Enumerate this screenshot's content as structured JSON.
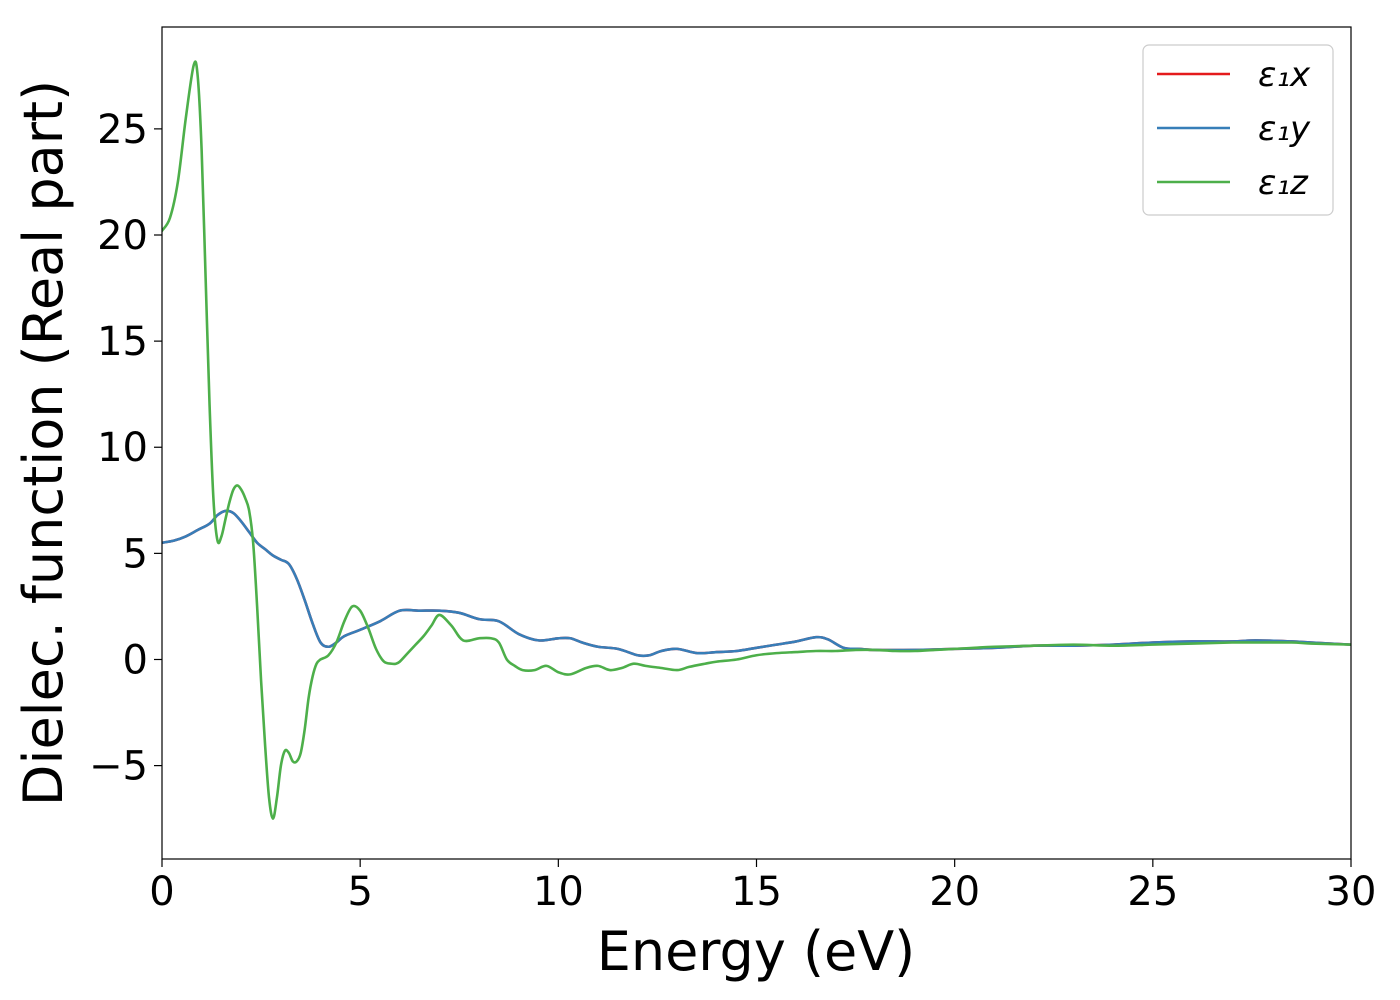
{
  "chart_data": {
    "type": "line",
    "title": "",
    "xlabel": "Energy (eV)",
    "ylabel": "Dielec. function (Real part)",
    "xlim": [
      0,
      30
    ],
    "ylim": [
      -9.4,
      29.8
    ],
    "xticks": [
      0,
      5,
      10,
      15,
      20,
      25,
      30
    ],
    "yticks": [
      -5,
      0,
      5,
      10,
      15,
      20,
      25
    ],
    "ytick_labels": [
      "−5",
      "0",
      "5",
      "10",
      "15",
      "20",
      "25"
    ],
    "grid": false,
    "legend_position": "top-right",
    "series": [
      {
        "name": "ε₁x",
        "color": "#e41a1c",
        "x": [
          0,
          0.3,
          0.6,
          0.9,
          1.2,
          1.4,
          1.6,
          1.8,
          2.0,
          2.2,
          2.4,
          2.6,
          2.8,
          3.0,
          3.2,
          3.4,
          3.6,
          3.8,
          4.0,
          4.2,
          4.4,
          4.6,
          5.0,
          5.5,
          6.0,
          6.5,
          7.0,
          7.5,
          8.0,
          8.5,
          9.0,
          9.5,
          10.0,
          10.3,
          10.6,
          11.0,
          11.5,
          12.0,
          12.3,
          12.6,
          13.0,
          13.5,
          14.0,
          14.5,
          15.0,
          15.5,
          16.0,
          16.5,
          16.8,
          17.2,
          17.6,
          18.0,
          19.0,
          20.0,
          21.0,
          22.0,
          23.0,
          24.0,
          25.0,
          26.0,
          27.0,
          27.6,
          28.5,
          29.0,
          30.0
        ],
        "y": [
          5.5,
          5.6,
          5.8,
          6.1,
          6.4,
          6.8,
          7.0,
          6.9,
          6.5,
          6.0,
          5.5,
          5.2,
          4.9,
          4.7,
          4.5,
          3.8,
          2.8,
          1.7,
          0.8,
          0.6,
          0.8,
          1.1,
          1.4,
          1.8,
          2.3,
          2.3,
          2.3,
          2.2,
          1.9,
          1.8,
          1.2,
          0.9,
          1.0,
          1.0,
          0.8,
          0.6,
          0.5,
          0.2,
          0.2,
          0.4,
          0.5,
          0.3,
          0.35,
          0.4,
          0.55,
          0.7,
          0.85,
          1.05,
          0.95,
          0.55,
          0.5,
          0.45,
          0.45,
          0.5,
          0.55,
          0.65,
          0.65,
          0.7,
          0.8,
          0.85,
          0.85,
          0.9,
          0.85,
          0.8,
          0.7
        ]
      },
      {
        "name": "ε₁y",
        "color": "#377eb8",
        "x": [
          0,
          0.3,
          0.6,
          0.9,
          1.2,
          1.4,
          1.6,
          1.8,
          2.0,
          2.2,
          2.4,
          2.6,
          2.8,
          3.0,
          3.2,
          3.4,
          3.6,
          3.8,
          4.0,
          4.2,
          4.4,
          4.6,
          5.0,
          5.5,
          6.0,
          6.5,
          7.0,
          7.5,
          8.0,
          8.5,
          9.0,
          9.5,
          10.0,
          10.3,
          10.6,
          11.0,
          11.5,
          12.0,
          12.3,
          12.6,
          13.0,
          13.5,
          14.0,
          14.5,
          15.0,
          15.5,
          16.0,
          16.5,
          16.8,
          17.2,
          17.6,
          18.0,
          19.0,
          20.0,
          21.0,
          22.0,
          23.0,
          24.0,
          25.0,
          26.0,
          27.0,
          27.6,
          28.5,
          29.0,
          30.0
        ],
        "y": [
          5.5,
          5.6,
          5.8,
          6.1,
          6.4,
          6.8,
          7.0,
          6.9,
          6.5,
          6.0,
          5.5,
          5.2,
          4.9,
          4.7,
          4.5,
          3.8,
          2.8,
          1.7,
          0.8,
          0.6,
          0.8,
          1.1,
          1.4,
          1.8,
          2.3,
          2.3,
          2.3,
          2.2,
          1.9,
          1.8,
          1.2,
          0.9,
          1.0,
          1.0,
          0.8,
          0.6,
          0.5,
          0.2,
          0.2,
          0.4,
          0.5,
          0.3,
          0.35,
          0.4,
          0.55,
          0.7,
          0.85,
          1.05,
          0.95,
          0.55,
          0.5,
          0.45,
          0.45,
          0.5,
          0.55,
          0.65,
          0.65,
          0.7,
          0.8,
          0.85,
          0.85,
          0.9,
          0.85,
          0.8,
          0.7
        ]
      },
      {
        "name": "ε₁z",
        "color": "#4daf4a",
        "x": [
          0,
          0.2,
          0.4,
          0.6,
          0.8,
          0.9,
          1.0,
          1.1,
          1.2,
          1.3,
          1.4,
          1.5,
          1.6,
          1.7,
          1.8,
          1.9,
          2.0,
          2.1,
          2.2,
          2.3,
          2.4,
          2.5,
          2.6,
          2.7,
          2.8,
          2.9,
          3.0,
          3.1,
          3.2,
          3.3,
          3.4,
          3.5,
          3.6,
          3.7,
          3.8,
          3.9,
          4.0,
          4.2,
          4.4,
          4.6,
          4.8,
          5.0,
          5.2,
          5.4,
          5.6,
          5.8,
          5.9,
          6.0,
          6.2,
          6.4,
          6.6,
          6.8,
          7.0,
          7.3,
          7.6,
          8.0,
          8.3,
          8.5,
          8.7,
          8.9,
          9.1,
          9.4,
          9.7,
          10.0,
          10.3,
          10.7,
          11.0,
          11.3,
          11.6,
          11.9,
          12.2,
          12.6,
          13.0,
          13.3,
          13.7,
          14.0,
          14.5,
          15.0,
          15.5,
          16.0,
          16.5,
          17.0,
          17.5,
          18.0,
          18.5,
          19.0,
          19.5,
          20.0,
          20.5,
          21.0,
          22.0,
          23.0,
          24.0,
          25.0,
          26.0,
          27.0,
          27.6,
          28.5,
          29.0,
          30.0
        ],
        "y": [
          20.2,
          20.8,
          22.5,
          25.5,
          28.0,
          27.5,
          24.0,
          18.0,
          12.0,
          7.5,
          5.6,
          5.8,
          6.6,
          7.4,
          8.0,
          8.2,
          8.0,
          7.6,
          7.0,
          5.5,
          2.5,
          -1.0,
          -4.0,
          -6.5,
          -7.5,
          -6.5,
          -5.0,
          -4.3,
          -4.4,
          -4.8,
          -4.8,
          -4.4,
          -3.3,
          -1.8,
          -0.8,
          -0.2,
          0.0,
          0.2,
          0.8,
          1.8,
          2.5,
          2.3,
          1.5,
          0.5,
          -0.1,
          -0.2,
          -0.2,
          -0.1,
          0.3,
          0.7,
          1.1,
          1.6,
          2.1,
          1.6,
          0.9,
          1.0,
          1.0,
          0.8,
          0.0,
          -0.3,
          -0.5,
          -0.5,
          -0.3,
          -0.6,
          -0.7,
          -0.4,
          -0.3,
          -0.5,
          -0.4,
          -0.2,
          -0.3,
          -0.4,
          -0.5,
          -0.35,
          -0.2,
          -0.1,
          0.0,
          0.2,
          0.3,
          0.35,
          0.4,
          0.4,
          0.45,
          0.45,
          0.4,
          0.4,
          0.45,
          0.5,
          0.55,
          0.6,
          0.65,
          0.7,
          0.65,
          0.7,
          0.75,
          0.8,
          0.8,
          0.8,
          0.75,
          0.7
        ]
      }
    ]
  }
}
